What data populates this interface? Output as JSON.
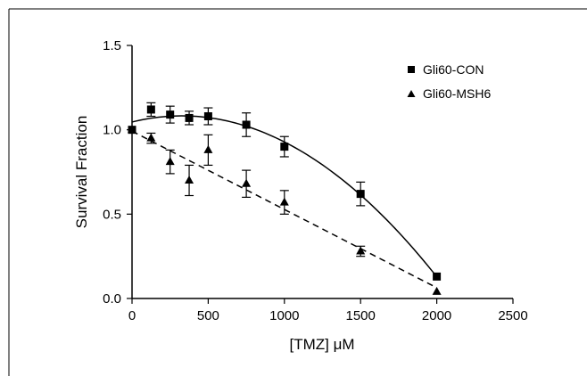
{
  "chart_data": {
    "type": "scatter",
    "title": "",
    "xlabel": "[TMZ] μM",
    "ylabel": "Survival Fraction",
    "xlim": [
      0,
      2500
    ],
    "ylim": [
      0,
      1.5
    ],
    "x_ticks": [
      0,
      500,
      1000,
      1500,
      2000,
      2500
    ],
    "x_tick_labels": [
      "0",
      "500",
      "1000",
      "1500",
      "2000",
      "2500"
    ],
    "y_ticks": [
      0,
      0.5,
      1,
      1.5
    ],
    "y_tick_labels": [
      "0.0",
      "0.5",
      "1.0",
      "1.5"
    ],
    "grid": false,
    "legend_position": "top-right",
    "series": [
      {
        "name": "Gli60-CON",
        "marker": "square",
        "fit": "solid",
        "x": [
          0,
          125,
          250,
          375,
          500,
          750,
          1000,
          1500,
          2000
        ],
        "y": [
          1.0,
          1.12,
          1.09,
          1.07,
          1.08,
          1.03,
          0.9,
          0.62,
          0.13
        ],
        "error": [
          0.0,
          0.04,
          0.05,
          0.04,
          0.05,
          0.07,
          0.06,
          0.07,
          0.0
        ]
      },
      {
        "name": "Gli60-MSH6",
        "marker": "triangle",
        "fit": "dashed",
        "x": [
          0,
          125,
          250,
          375,
          500,
          750,
          1000,
          1500,
          2000
        ],
        "y": [
          1.0,
          0.95,
          0.81,
          0.7,
          0.88,
          0.68,
          0.57,
          0.28,
          0.04
        ],
        "error": [
          0.0,
          0.03,
          0.07,
          0.09,
          0.09,
          0.08,
          0.07,
          0.03,
          0.0
        ]
      }
    ]
  }
}
